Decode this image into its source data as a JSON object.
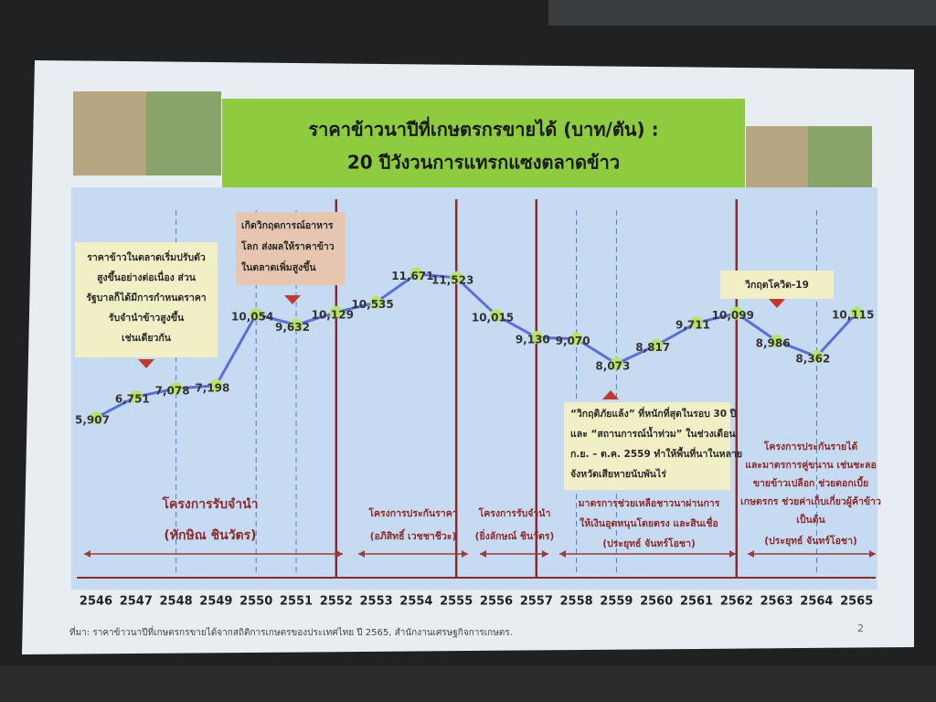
{
  "chart_data": {
    "type": "line",
    "title_lines": [
      "ราคาข้าวนาปีที่เกษตรกรขายได้ (บาท/ตัน) :",
      "20 ปีวังวนการแทรกแซงตลาดข้าว"
    ],
    "categories": [
      "2546",
      "2547",
      "2548",
      "2549",
      "2550",
      "2551",
      "2552",
      "2553",
      "2554",
      "2555",
      "2556",
      "2557",
      "2558",
      "2559",
      "2560",
      "2561",
      "2562",
      "2563",
      "2564",
      "2565"
    ],
    "series": [
      {
        "color": "#5a6fd8",
        "marker_color": "#b8e36a",
        "values": [
          5907,
          6751,
          7078,
          7198,
          10054,
          9632,
          10129,
          10535,
          11671,
          11523,
          10015,
          9130,
          9070,
          8073,
          8817,
          9711,
          10099,
          8986,
          8362,
          10115
        ],
        "value_labels": [
          "5,907",
          "6,751",
          "7,078",
          "7,198",
          "10,054",
          "9,632",
          "10,129",
          "10,535",
          "11,671",
          "11,523",
          "10,015",
          "9,130",
          "9,070",
          "8,073",
          "8,817",
          "9,711",
          "10,099",
          "8,986",
          "8,362",
          "10,115"
        ]
      }
    ],
    "ylim": [
      3600,
      14300
    ],
    "annotations": [
      {
        "lines": [
          "ราคาข้าวในตลาดเริ่มปรับตัว",
          "สูงขึ้นอย่างต่อเนื่อง ส่วน",
          "รัฐบาลก็ได้มีการกำหนดราคา",
          "รับจำนำข้าวสูงขึ้น",
          "เช่นเดียวกัน"
        ]
      },
      {
        "lines": [
          "เกิดวิกฤตการณ์อาหาร",
          "โลก ส่งผลให้ราคาข้าว",
          "ในตลาดเพิ่มสูงขึ้น"
        ]
      },
      {
        "lines": [
          "วิกฤตโควิด-19"
        ]
      },
      {
        "lines": [
          "“วิกฤติภัยแล้ง” ที่หนักที่สุดในรอบ 30 ปี",
          "และ “สถานการณ์น้ำท่วม” ในช่วงเดือน",
          "ก.ย. – ต.ค. 2559 ทำให้พื้นที่นาในหลาย",
          "จังหวัดเสียหายนับพันไร่"
        ]
      }
    ],
    "periods": [
      {
        "lines": [
          "โครงการรับจำนำ",
          "(ทักษิณ ชินวัตร)"
        ]
      },
      {
        "lines": [
          "โครงการประกันราคา",
          "(อภิสิทธิ์ เวชชาชีวะ)"
        ]
      },
      {
        "lines": [
          "โครงการรับจำนำ",
          "(ยิ่งลักษณ์ ชินวัตร)"
        ]
      },
      {
        "lines": [
          "มาตรการช่วยเหลือชาวนาผ่านการ",
          "ให้เงินอุดหนุนโดยตรง และสินเชื่อ",
          "(ประยุทธ์ จันทร์โอชา)"
        ]
      },
      {
        "lines": [
          "โครงการประกันรายได้",
          "และมาตรการคู่ขนาน เช่นชะลอ",
          "ขายข้าวเปลือก ช่วยดอกเบี้ย",
          "เกษตรกร ช่วยค่าเก็บเกี่ยวผู้ค้าข้าว",
          "เป็นต้น",
          "(ประยุทธ์ จันทร์โอชา)"
        ]
      }
    ],
    "source": "ที่มา: ราคาข้าวนาปีที่เกษตรกรขายได้จากสถิติการเกษตรของประเทศไทย ปี 2565, สำนักงานเศรษฐกิจการเกษตร.",
    "page_number": "2"
  }
}
